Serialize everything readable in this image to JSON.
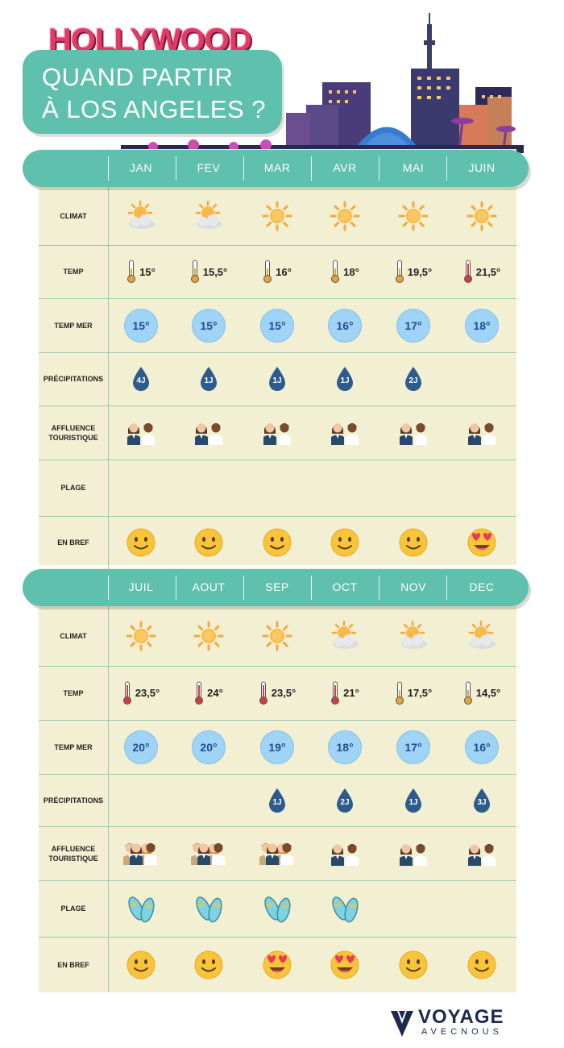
{
  "header": {
    "brand": "HOLLYWOOD",
    "title_line1": "QUAND PARTIR",
    "title_line2": "À LOS ANGELES ?"
  },
  "row_labels": {
    "climate": "CLIMAT",
    "temp": "TEMP",
    "sea": "TEMP MER",
    "rain": "PRÉCIPITATIONS",
    "crowd_line1": "AFFLUENCE",
    "crowd_line2": "TOURISTIQUE",
    "beach": "PLAGE",
    "summary": "EN BREF"
  },
  "sections": [
    {
      "months": [
        {
          "name": "JAN",
          "climate": "partly-cloudy",
          "temp": "15°",
          "thermo": "mild",
          "sea": "15°",
          "rain": "4J",
          "crowd": 2,
          "beach": false,
          "mood": "smile"
        },
        {
          "name": "FEV",
          "climate": "partly-cloudy",
          "temp": "15,5°",
          "thermo": "mild",
          "sea": "15°",
          "rain": "1J",
          "crowd": 2,
          "beach": false,
          "mood": "smile"
        },
        {
          "name": "MAR",
          "climate": "sunny",
          "temp": "16°",
          "thermo": "mild",
          "sea": "15°",
          "rain": "1J",
          "crowd": 2,
          "beach": false,
          "mood": "smile"
        },
        {
          "name": "AVR",
          "climate": "sunny",
          "temp": "18°",
          "thermo": "mild",
          "sea": "16°",
          "rain": "1J",
          "crowd": 2,
          "beach": false,
          "mood": "smile"
        },
        {
          "name": "MAI",
          "climate": "sunny",
          "temp": "19,5°",
          "thermo": "mild",
          "sea": "17°",
          "rain": "2J",
          "crowd": 2,
          "beach": false,
          "mood": "smile"
        },
        {
          "name": "JUIN",
          "climate": "sunny",
          "temp": "21,5°",
          "thermo": "hot",
          "sea": "18°",
          "rain": "",
          "crowd": 2,
          "beach": false,
          "mood": "love"
        }
      ]
    },
    {
      "months": [
        {
          "name": "JUIL",
          "climate": "sunny",
          "temp": "23,5°",
          "thermo": "hot",
          "sea": "20°",
          "rain": "",
          "crowd": 4,
          "beach": true,
          "mood": "smile"
        },
        {
          "name": "AOUT",
          "climate": "sunny",
          "temp": "24°",
          "thermo": "hot",
          "sea": "20°",
          "rain": "",
          "crowd": 4,
          "beach": true,
          "mood": "smile"
        },
        {
          "name": "SEP",
          "climate": "sunny",
          "temp": "23,5°",
          "thermo": "hot",
          "sea": "19°",
          "rain": "1J",
          "crowd": 4,
          "beach": true,
          "mood": "love"
        },
        {
          "name": "OCT",
          "climate": "partly-cloudy",
          "temp": "21°",
          "thermo": "hot",
          "sea": "18°",
          "rain": "2J",
          "crowd": 2,
          "beach": true,
          "mood": "love"
        },
        {
          "name": "NOV",
          "climate": "partly-cloudy",
          "temp": "17,5°",
          "thermo": "mild",
          "sea": "17°",
          "rain": "1J",
          "crowd": 2,
          "beach": false,
          "mood": "smile"
        },
        {
          "name": "DEC",
          "climate": "partly-cloudy",
          "temp": "14,5°",
          "thermo": "mild",
          "sea": "16°",
          "rain": "3J",
          "crowd": 2,
          "beach": false,
          "mood": "smile"
        }
      ]
    }
  ],
  "logo": {
    "main": "VOYAGE",
    "sub": "AVECNOUS"
  },
  "colors": {
    "accent": "#5fc0ad",
    "table_bg": "#f2efd2",
    "sea_circle": "#9fd4f7",
    "drop": "#2c5b8c",
    "brand_pink": "#e23a66"
  }
}
